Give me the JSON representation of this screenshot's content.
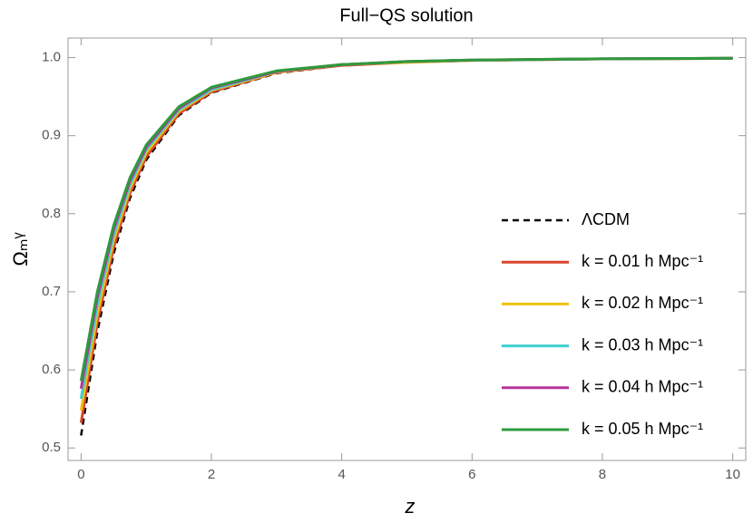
{
  "chart_data": {
    "type": "line",
    "title": "Full−QS solution",
    "x_label": "z",
    "y_label": "Ωₘᵞ",
    "x": [
      0,
      0.25,
      0.5,
      0.75,
      1,
      1.5,
      2,
      3,
      4,
      5,
      6,
      8,
      10
    ],
    "series": [
      {
        "name": "ΛCDM",
        "color": "#000000",
        "dashed": true,
        "values": [
          0.516,
          0.649,
          0.749,
          0.82,
          0.869,
          0.926,
          0.955,
          0.98,
          0.99,
          0.994,
          0.9963,
          0.9982,
          0.999
        ]
      },
      {
        "name": "k = 0.01 h Mpc⁻¹",
        "color": "#d9442a",
        "values": [
          0.532,
          0.661,
          0.757,
          0.826,
          0.873,
          0.928,
          0.956,
          0.981,
          0.99,
          0.994,
          0.9964,
          0.9983,
          0.999
        ]
      },
      {
        "name": "k = 0.02 h Mpc⁻¹",
        "color": "#f0c20f",
        "values": [
          0.548,
          0.672,
          0.766,
          0.832,
          0.878,
          0.931,
          0.958,
          0.981,
          0.991,
          0.994,
          0.9965,
          0.9983,
          0.9991
        ]
      },
      {
        "name": "k = 0.03 h Mpc⁻¹",
        "color": "#3fcfd0",
        "values": [
          0.563,
          0.683,
          0.773,
          0.837,
          0.882,
          0.933,
          0.959,
          0.982,
          0.991,
          0.995,
          0.9967,
          0.9984,
          0.9991
        ]
      },
      {
        "name": "k = 0.04 h Mpc⁻¹",
        "color": "#b5359b",
        "values": [
          0.576,
          0.693,
          0.78,
          0.842,
          0.885,
          0.935,
          0.961,
          0.982,
          0.991,
          0.995,
          0.9968,
          0.9984,
          0.9991
        ]
      },
      {
        "name": "k = 0.05 h Mpc⁻¹",
        "color": "#2e9a3c",
        "values": [
          0.586,
          0.7,
          0.785,
          0.846,
          0.888,
          0.937,
          0.962,
          0.983,
          0.991,
          0.995,
          0.9968,
          0.9985,
          0.9991
        ]
      }
    ],
    "xlim": [
      -0.2,
      10.2
    ],
    "ylim": [
      0.484,
      1.025
    ],
    "xticks": [
      0,
      2,
      4,
      6,
      8,
      10
    ],
    "yticks": [
      {
        "value": 0.5,
        "label": "0.5"
      },
      {
        "value": 0.6,
        "label": "0.6"
      },
      {
        "value": 0.7,
        "label": "0.7"
      },
      {
        "value": 0.8,
        "label": "0.8"
      },
      {
        "value": 0.9,
        "label": "0.9"
      },
      {
        "value": 1.0,
        "label": "1.0"
      }
    ],
    "legend": "right"
  }
}
